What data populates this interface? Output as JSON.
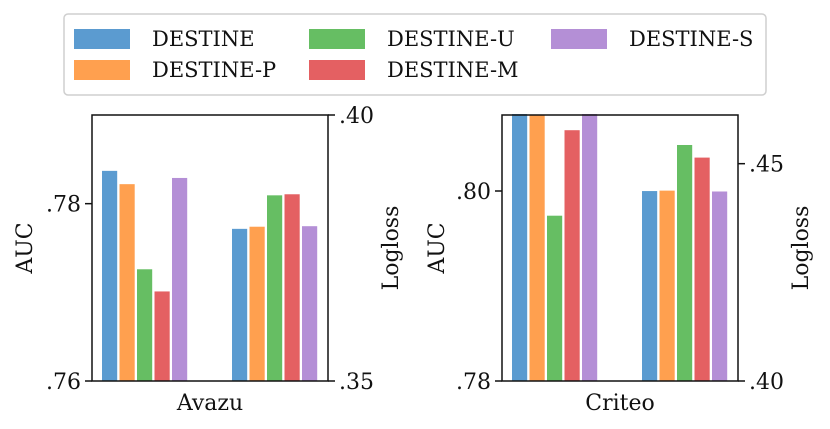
{
  "legend": {
    "items": [
      {
        "label": "DESTINE",
        "color": "#5b9bd0"
      },
      {
        "label": "DESTINE-P",
        "color": "#ffa04f"
      },
      {
        "label": "DESTINE-U",
        "color": "#66be63"
      },
      {
        "label": "DESTINE-M",
        "color": "#e46062"
      },
      {
        "label": "DESTINE-S",
        "color": "#b48fd6"
      }
    ]
  },
  "chart_data": [
    {
      "type": "bar",
      "xlabel": "Avazu",
      "left_axis": {
        "label": "AUC",
        "range": [
          0.76,
          0.79
        ],
        "ticks": [
          ".76",
          ".78"
        ],
        "tick_values": [
          0.76,
          0.78
        ]
      },
      "right_axis": {
        "label": "Logloss",
        "range": [
          0.35,
          0.4
        ],
        "ticks": [
          ".35",
          ".40"
        ],
        "tick_values": [
          0.35,
          0.4
        ]
      },
      "groups": [
        {
          "metric": "AUC",
          "axis": "left",
          "values": [
            0.7837,
            0.7822,
            0.7726,
            0.7701,
            0.7829
          ]
        },
        {
          "metric": "Logloss",
          "axis": "right",
          "values": [
            0.3786,
            0.379,
            0.3849,
            0.3851,
            0.3791
          ]
        }
      ]
    },
    {
      "type": "bar",
      "xlabel": "Criteo",
      "left_axis": {
        "label": "AUC",
        "range": [
          0.78,
          0.808
        ],
        "ticks": [
          ".78",
          ".80"
        ],
        "tick_values": [
          0.78,
          0.8
        ]
      },
      "right_axis": {
        "label": "Logloss",
        "range": [
          0.4,
          0.4612
        ],
        "ticks": [
          ".40",
          ".45"
        ],
        "tick_values": [
          0.4,
          0.45
        ]
      },
      "groups": [
        {
          "metric": "AUC",
          "axis": "left",
          "values": [
            0.8081,
            0.808,
            0.7974,
            0.8064,
            0.8081
          ]
        },
        {
          "metric": "Logloss",
          "axis": "right",
          "values": [
            0.4437,
            0.4438,
            0.4543,
            0.4514,
            0.4436
          ]
        }
      ]
    }
  ]
}
